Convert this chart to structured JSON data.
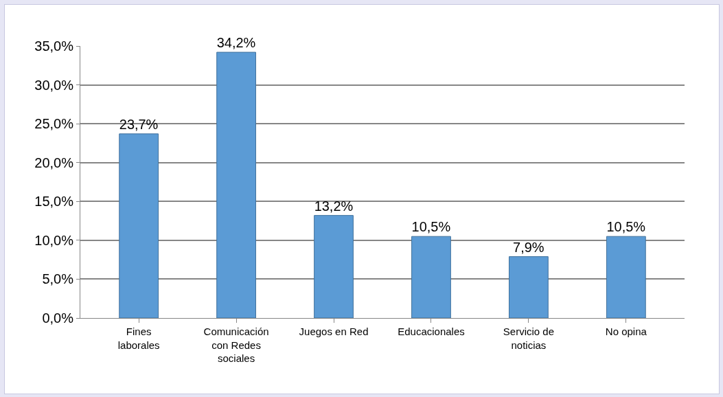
{
  "chart_data": {
    "type": "bar",
    "categories": [
      "Fines laborales",
      "Comunicación con Redes sociales",
      "Juegos en Red",
      "Educacionales",
      "Servicio de noticias",
      "No opina"
    ],
    "values": [
      23.7,
      34.2,
      13.2,
      10.5,
      7.9,
      10.5
    ],
    "value_labels": [
      "23,7%",
      "34,2%",
      "13,2%",
      "10,5%",
      "7,9%",
      "10,5%"
    ],
    "color": "#5b9bd5",
    "ylim": [
      0,
      35
    ],
    "yticks": [
      {
        "value": 0,
        "label": "0,0%"
      },
      {
        "value": 5,
        "label": "5,0%"
      },
      {
        "value": 10,
        "label": "10,0%"
      },
      {
        "value": 15,
        "label": "15,0%"
      },
      {
        "value": 20,
        "label": "20,0%"
      },
      {
        "value": 25,
        "label": "25,0%"
      },
      {
        "value": 30,
        "label": "30,0%"
      },
      {
        "value": 35,
        "label": "35,0%"
      }
    ],
    "grid": true
  }
}
